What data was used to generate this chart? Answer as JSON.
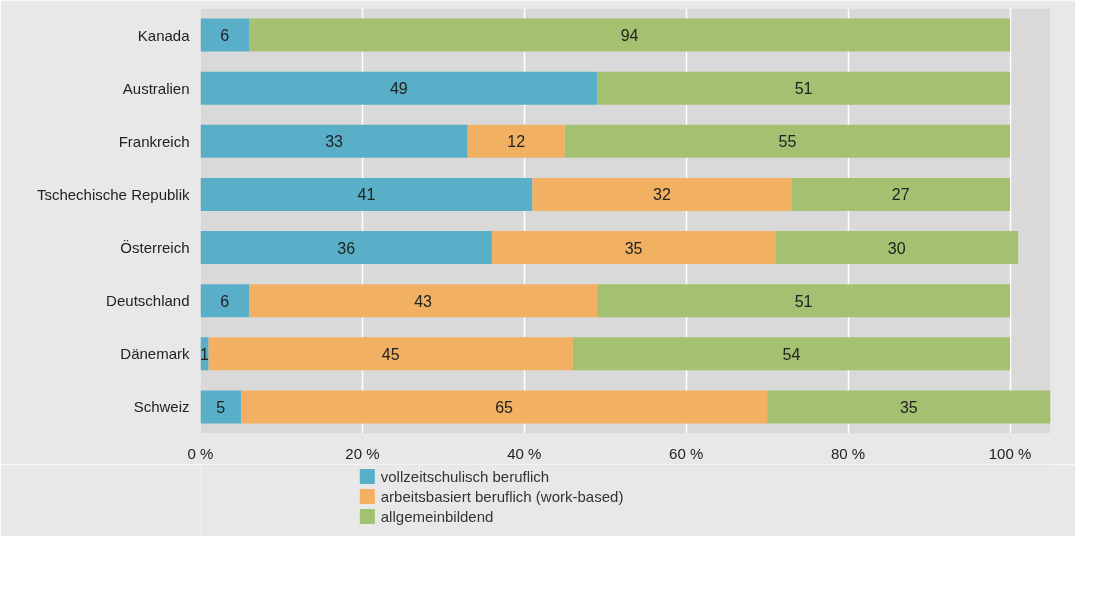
{
  "chart_data": {
    "type": "bar",
    "orientation": "horizontal",
    "stacked": true,
    "data_labels": true,
    "legend": "bottom",
    "grid": "x",
    "categories": [
      "Kanada",
      "Australien",
      "Frankreich",
      "Tschechische Republik",
      "Österreich",
      "Deutschland",
      "Dänemark",
      "Schweiz"
    ],
    "series": [
      {
        "name": "vollzeitschulisch beruflich",
        "color": "#5aafc8",
        "values": [
          6,
          49,
          33,
          41,
          36,
          6,
          1,
          5
        ]
      },
      {
        "name": "arbeitsbasiert beruflich (work-based)",
        "color": "#f2b063",
        "values": [
          null,
          null,
          12,
          32,
          35,
          43,
          45,
          65
        ]
      },
      {
        "name": "allgemeinbildend",
        "color": "#a3c170",
        "values": [
          94,
          51,
          55,
          27,
          30,
          51,
          54,
          35
        ]
      }
    ],
    "xlim": [
      0,
      105
    ],
    "xticks": [
      {
        "value": 0,
        "label": "0 %"
      },
      {
        "value": 20,
        "label": "20 %"
      },
      {
        "value": 40,
        "label": "40 %"
      },
      {
        "value": 60,
        "label": "60 %"
      },
      {
        "value": 80,
        "label": "80 %"
      },
      {
        "value": 100,
        "label": "100 %"
      }
    ]
  }
}
